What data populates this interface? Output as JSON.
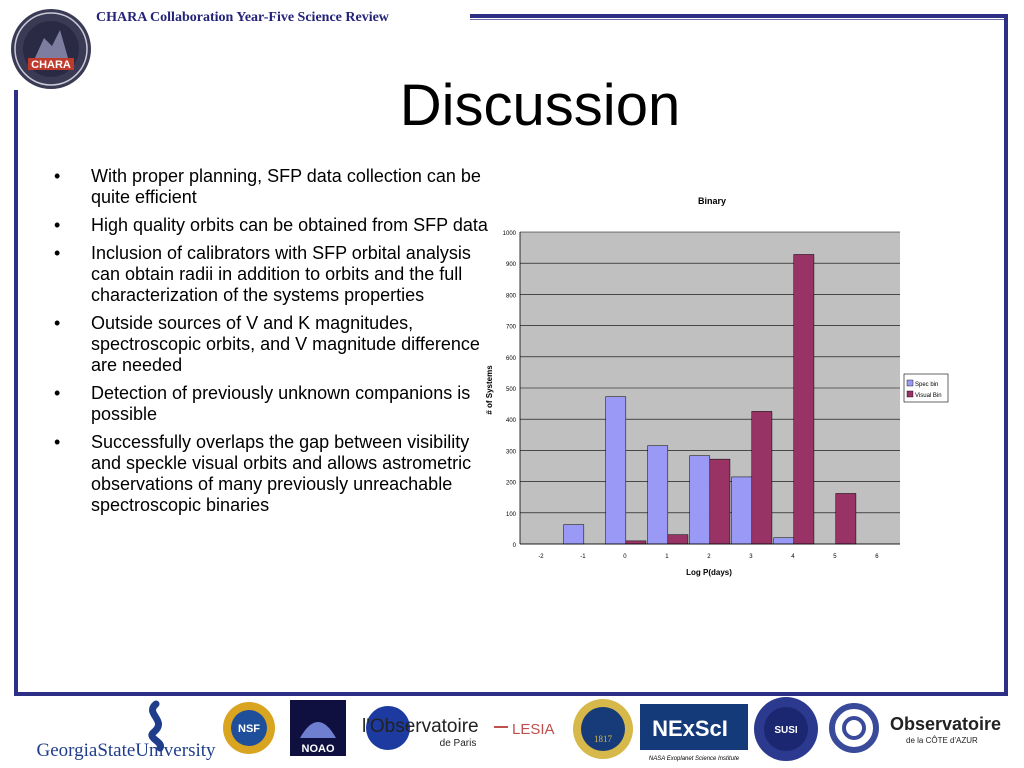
{
  "header": {
    "text": "CHARA Collaboration Year-Five Science Review"
  },
  "logo_chara": {
    "text": "CHARA"
  },
  "title": "Discussion",
  "bullet_marker": "•",
  "bullets": [
    "With proper planning, SFP data collection can be quite efficient",
    "High quality orbits can be obtained from SFP data",
    "Inclusion of calibrators with SFP orbital analysis can obtain radii in addition to orbits and the full characterization of the systems properties",
    "Outside sources of V and K magnitudes, spectroscopic orbits, and V magnitude difference are needed",
    "Detection of previously unknown companions is possible",
    "Successfully overlaps the gap between visibility and speckle visual orbits and allows astrometric observations of many previously unreachable spectroscopic binaries"
  ],
  "chart_data": {
    "type": "bar",
    "title": "Binary",
    "xlabel": "Log P(days)",
    "ylabel": "# of Systems",
    "ylim": [
      0,
      1000
    ],
    "yticks": [
      0,
      100,
      200,
      300,
      400,
      500,
      600,
      700,
      800,
      900,
      1000
    ],
    "categories": [
      "-2",
      "-1",
      "0",
      "1",
      "2",
      "3",
      "4",
      "5",
      "6"
    ],
    "series": [
      {
        "name": "Spec bin",
        "color": "#9a99f5",
        "values": [
          0,
          62,
          472,
          315,
          283,
          215,
          20,
          0,
          0
        ]
      },
      {
        "name": "Visual Bin",
        "color": "#993366",
        "values": [
          0,
          0,
          10,
          30,
          272,
          425,
          928,
          162,
          0
        ]
      }
    ],
    "legend": "right",
    "plot_bg": "#c0c0c0",
    "grid": true
  },
  "logos": {
    "gsu": "GeorgiaStateUniversity",
    "nsf": "NSF",
    "noao": "NOAO",
    "observatoire_paris": "l'Observatoire",
    "observatoire_paris_sub": "de Paris",
    "lesia": "LESIA",
    "michigan": "1817",
    "nexsci": "NExScI",
    "nexsci_sub": "NASA Exoplanet Science Institute",
    "susi": "SUSI",
    "cote_azur": "Observatoire",
    "cote_azur_sub": "de la CÔTE d'AZUR"
  }
}
